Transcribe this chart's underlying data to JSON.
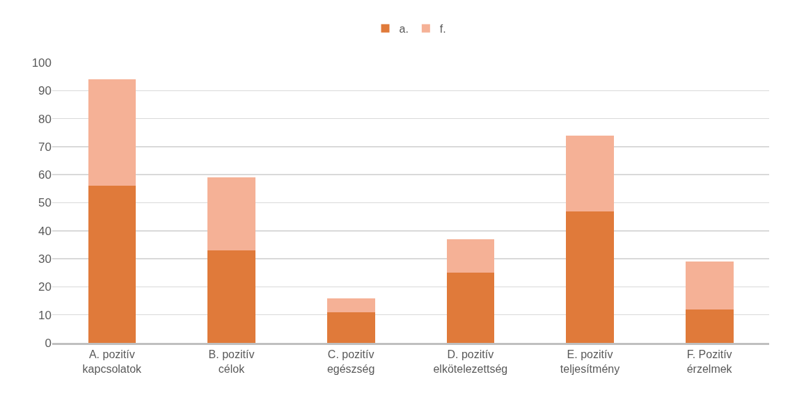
{
  "chart_data": {
    "type": "bar",
    "stacked": true,
    "categories": [
      "A. pozitív kapcsolatok",
      "B. pozitív célok",
      "C. pozitív egészség",
      "D. pozitív elkötelezettség",
      "E. pozitív teljesítmény",
      "F. Pozitív érzelmek"
    ],
    "series": [
      {
        "name": "a.",
        "color": "#e07a3a",
        "values": [
          56,
          33,
          11,
          25,
          47,
          12
        ]
      },
      {
        "name": "f.",
        "color": "#f5b196",
        "values": [
          38,
          26,
          5,
          12,
          27,
          17
        ]
      }
    ],
    "ylim": [
      0,
      100
    ],
    "yticks": [
      0,
      10,
      20,
      30,
      40,
      50,
      60,
      70,
      80,
      90,
      100
    ],
    "grid": "y",
    "legend": "top"
  }
}
